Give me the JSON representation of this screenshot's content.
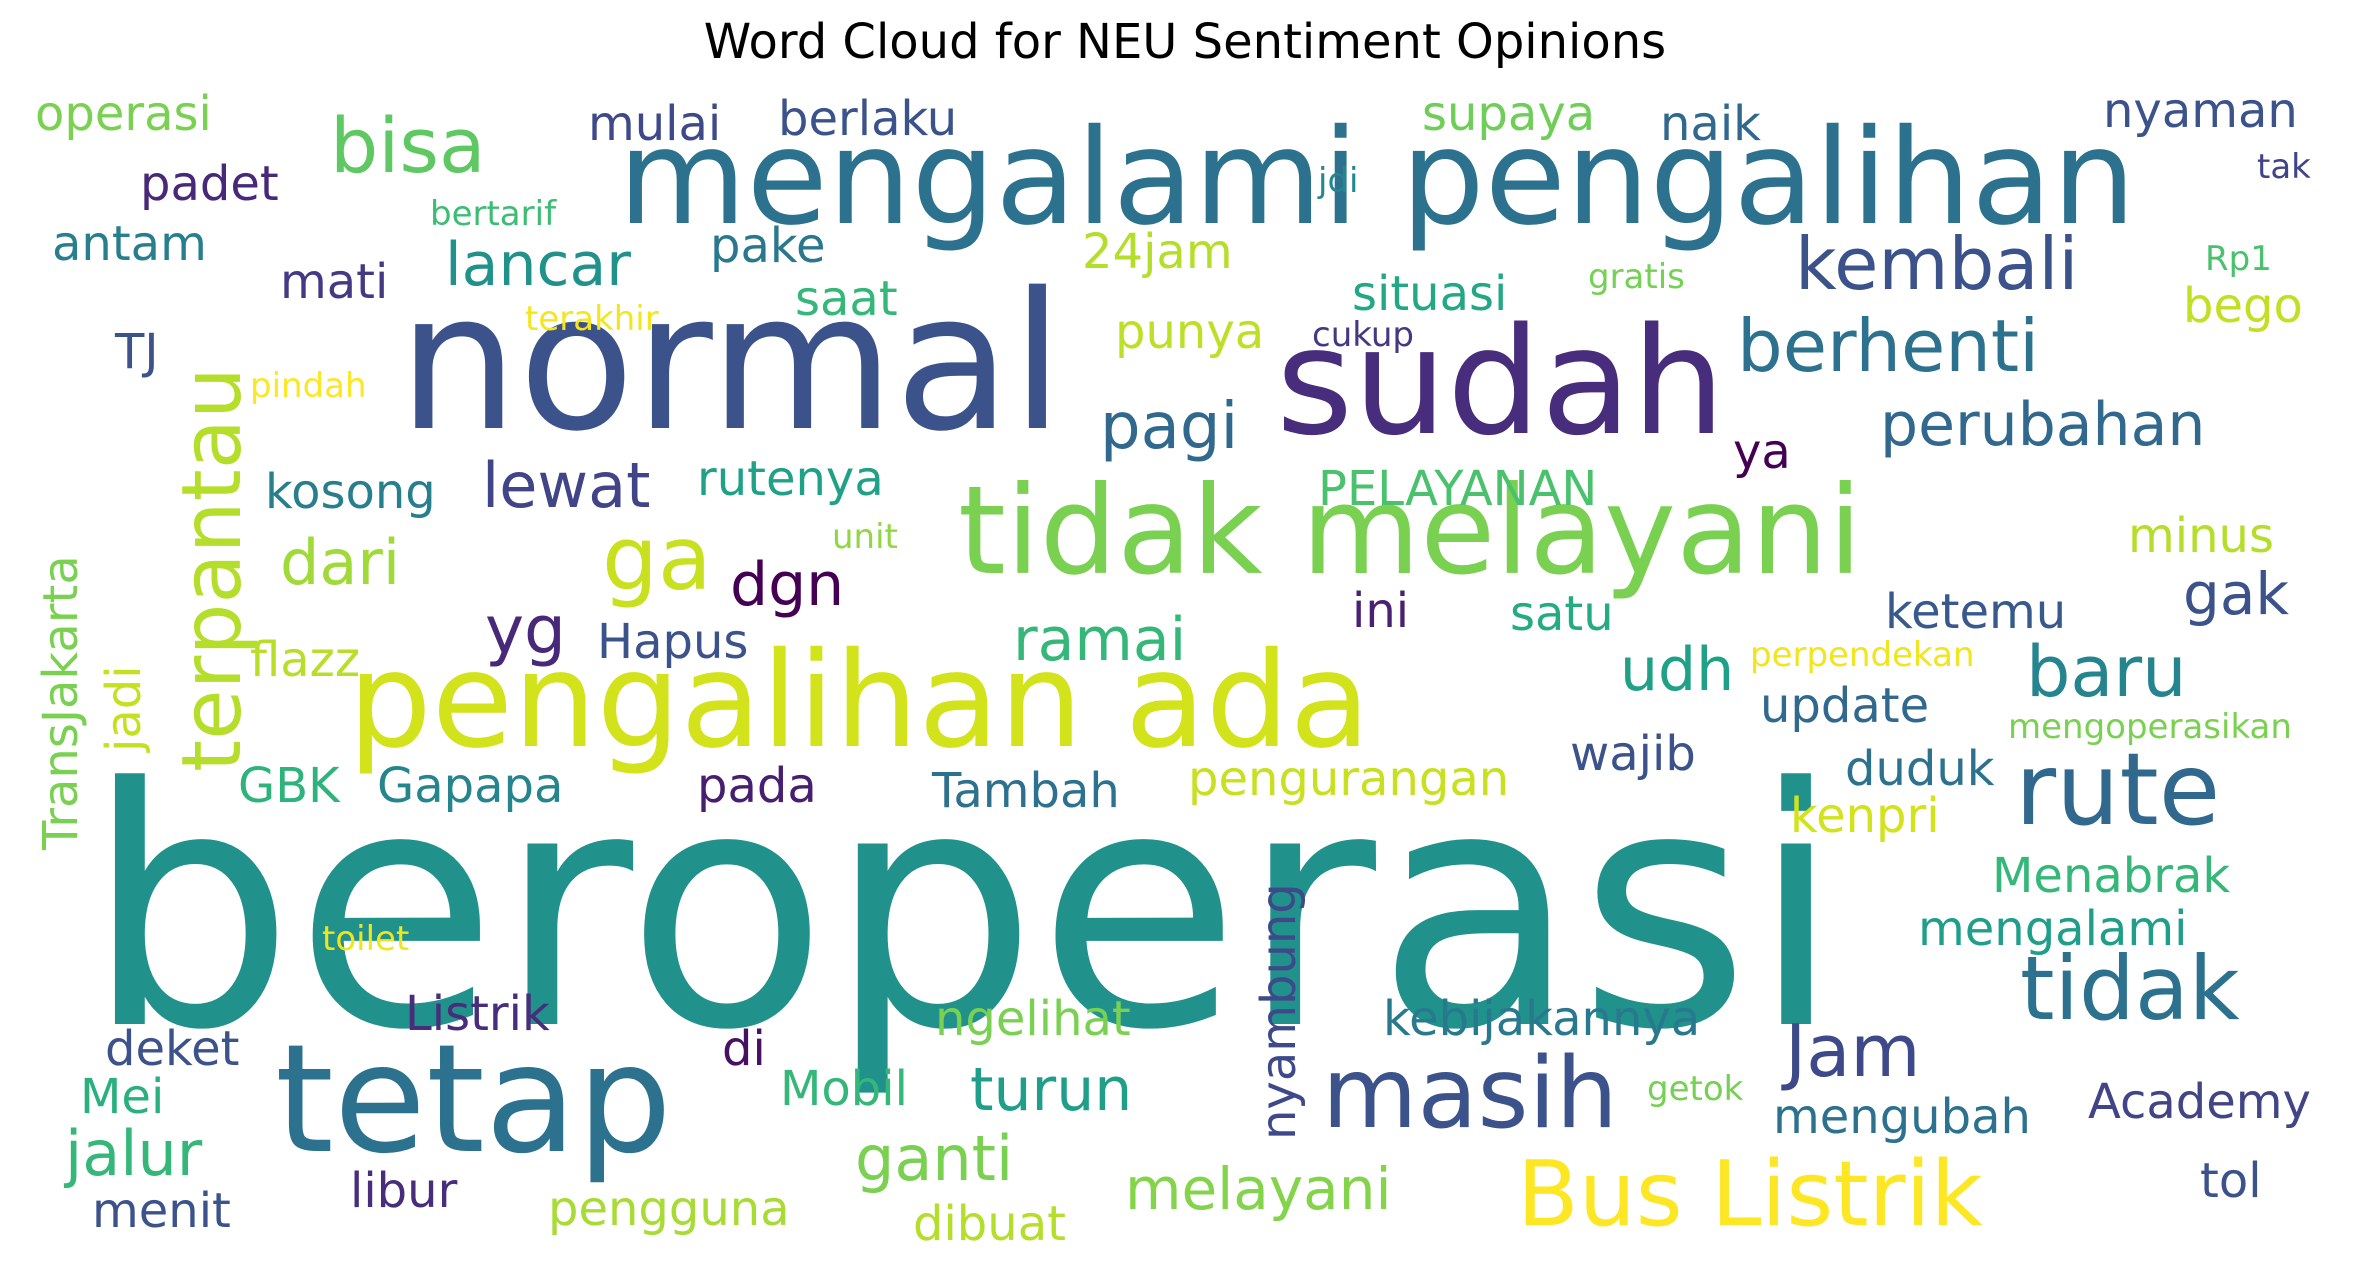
{
  "title": "Word Cloud for NEU Sentiment Opinions",
  "words": [
    {
      "text": "beroperasi",
      "color": "#21918c"
    },
    {
      "text": "normal",
      "color": "#3b528b"
    },
    {
      "text": "mengalami pengalihan",
      "color": "#2c728e"
    },
    {
      "text": "sudah",
      "color": "#472d7b"
    },
    {
      "text": "tidak melayani",
      "color": "#7ad151"
    },
    {
      "text": "pengalihan ada",
      "color": "#d2e21b"
    },
    {
      "text": "tetap",
      "color": "#2c728e"
    },
    {
      "text": "rute",
      "color": "#31688e"
    },
    {
      "text": "masih",
      "color": "#3b528b"
    },
    {
      "text": "tidak",
      "color": "#2c728e"
    },
    {
      "text": "Bus Listrik",
      "color": "#fde725"
    },
    {
      "text": "terpantau",
      "color": "#b5de2b"
    },
    {
      "text": "bisa",
      "color": "#5ec962"
    },
    {
      "text": "kembali",
      "color": "#3b528b"
    },
    {
      "text": "berhenti",
      "color": "#2c728e"
    },
    {
      "text": "ga",
      "color": "#c8e020"
    },
    {
      "text": "Jam",
      "color": "#3e4989"
    },
    {
      "text": "baru",
      "color": "#25858e"
    },
    {
      "text": "perubahan",
      "color": "#31688e"
    },
    {
      "text": "pagi",
      "color": "#31688e"
    },
    {
      "text": "dgn",
      "color": "#440154"
    },
    {
      "text": "yg",
      "color": "#482878"
    },
    {
      "text": "lewat",
      "color": "#414487"
    },
    {
      "text": "dari",
      "color": "#a0da39"
    },
    {
      "text": "lancar",
      "color": "#21918c"
    },
    {
      "text": "ramai",
      "color": "#35b779"
    },
    {
      "text": "udh",
      "color": "#1fa187"
    },
    {
      "text": "ganti",
      "color": "#7ad151"
    },
    {
      "text": "melayani",
      "color": "#84d44b"
    },
    {
      "text": "turun",
      "color": "#1f9e89"
    },
    {
      "text": "jalur",
      "color": "#35b779"
    },
    {
      "text": "gak",
      "color": "#3b528b"
    },
    {
      "text": "mulai",
      "color": "#3e4989"
    },
    {
      "text": "berlaku",
      "color": "#3b528b"
    },
    {
      "text": "operasi",
      "color": "#7ad151"
    },
    {
      "text": "padet",
      "color": "#482878"
    },
    {
      "text": "antam",
      "color": "#277f8e"
    },
    {
      "text": "mati",
      "color": "#443983"
    },
    {
      "text": "pake",
      "color": "#2a788e"
    },
    {
      "text": "24jam",
      "color": "#b5de2b"
    },
    {
      "text": "saat",
      "color": "#35b779"
    },
    {
      "text": "supaya",
      "color": "#6ece58"
    },
    {
      "text": "naik",
      "color": "#31688e"
    },
    {
      "text": "nyaman",
      "color": "#3b528b"
    },
    {
      "text": "tak",
      "color": "#414487"
    },
    {
      "text": "jdi",
      "color": "#24868e"
    },
    {
      "text": "bertarif",
      "color": "#3dbc74"
    },
    {
      "text": "situasi",
      "color": "#22a884"
    },
    {
      "text": "gratis",
      "color": "#75d054"
    },
    {
      "text": "Rp1",
      "color": "#4ac16d"
    },
    {
      "text": "bego",
      "color": "#c2df23"
    },
    {
      "text": "punya",
      "color": "#bddf26"
    },
    {
      "text": "cukup",
      "color": "#453781"
    },
    {
      "text": "terakhir",
      "color": "#f4e61e"
    },
    {
      "text": "TJ",
      "color": "#3b528b"
    },
    {
      "text": "pindah",
      "color": "#fde725"
    },
    {
      "text": "kosong",
      "color": "#277f8e"
    },
    {
      "text": "rutenya",
      "color": "#1fa187"
    },
    {
      "text": "PELAYANAN",
      "color": "#4ac16d"
    },
    {
      "text": "ya",
      "color": "#440154"
    },
    {
      "text": "unit",
      "color": "#90d743"
    },
    {
      "text": "minus",
      "color": "#b5de2b"
    },
    {
      "text": "TransJakarta",
      "color": "#7ad151"
    },
    {
      "text": "ini",
      "color": "#482173"
    },
    {
      "text": "satu",
      "color": "#25ab82"
    },
    {
      "text": "ketemu",
      "color": "#38598c"
    },
    {
      "text": "Hapus",
      "color": "#3b528b"
    },
    {
      "text": "flazz",
      "color": "#b8de29"
    },
    {
      "text": "perpendekan",
      "color": "#f1e51d"
    },
    {
      "text": "update",
      "color": "#31688e"
    },
    {
      "text": "jadi",
      "color": "#c5e021"
    },
    {
      "text": "mengoperasikan",
      "color": "#7ad151"
    },
    {
      "text": "wajib",
      "color": "#3b528b"
    },
    {
      "text": "duduk",
      "color": "#2c728e"
    },
    {
      "text": "GBK",
      "color": "#2eb37c"
    },
    {
      "text": "Gapapa",
      "color": "#25858e"
    },
    {
      "text": "pada",
      "color": "#481f70"
    },
    {
      "text": "Tambah",
      "color": "#2c728e"
    },
    {
      "text": "pengurangan",
      "color": "#c8e020"
    },
    {
      "text": "kenpri",
      "color": "#d2e21b"
    },
    {
      "text": "Menabrak",
      "color": "#35b779"
    },
    {
      "text": "mengalami",
      "color": "#1f9e89"
    },
    {
      "text": "nyambung",
      "color": "#3e4989"
    },
    {
      "text": "toilet",
      "color": "#f1e51d"
    },
    {
      "text": "Listrik",
      "color": "#472d7b"
    },
    {
      "text": "ngelihat",
      "color": "#7ad151"
    },
    {
      "text": "kebijakannya",
      "color": "#29798e"
    },
    {
      "text": "deket",
      "color": "#3b528b"
    },
    {
      "text": "di",
      "color": "#471063"
    },
    {
      "text": "Mei",
      "color": "#2ab07f"
    },
    {
      "text": "Mobil",
      "color": "#35b779"
    },
    {
      "text": "getok",
      "color": "#75d054"
    },
    {
      "text": "Academy",
      "color": "#414487"
    },
    {
      "text": "mengubah",
      "color": "#2c728e"
    },
    {
      "text": "tol",
      "color": "#3b528b"
    },
    {
      "text": "libur",
      "color": "#472d7b"
    },
    {
      "text": "menit",
      "color": "#3b528b"
    },
    {
      "text": "pengguna",
      "color": "#a8db34"
    },
    {
      "text": "dibuat",
      "color": "#b5de2b"
    }
  ]
}
